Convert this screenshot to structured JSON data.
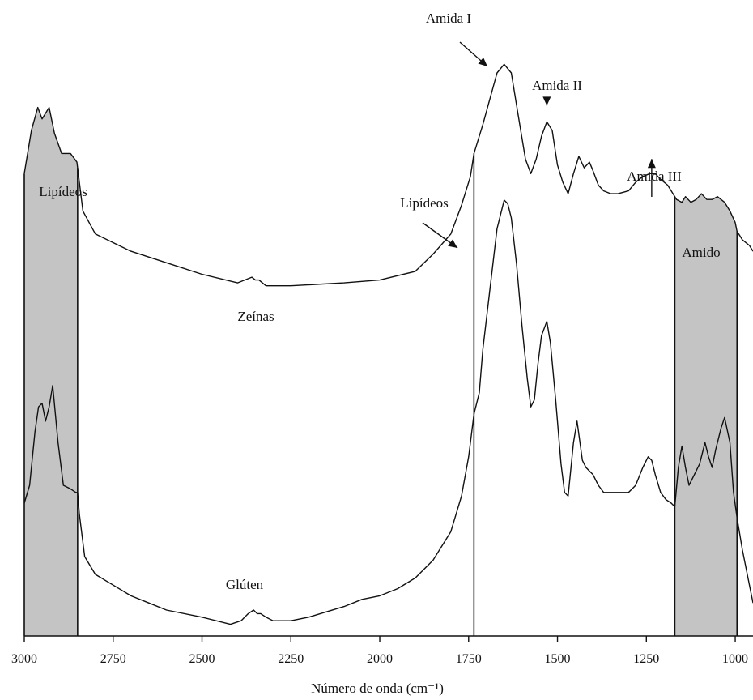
{
  "chart_data": {
    "type": "line",
    "xlabel": "Número de onda (cm⁻¹)",
    "xlim": [
      3000,
      950
    ],
    "x_reversed": true,
    "xticks": [
      3000,
      2750,
      2500,
      2250,
      2000,
      1750,
      1500,
      1250,
      1000
    ],
    "y_axis_shown": false,
    "grid": false,
    "shaded_regions": [
      {
        "label": "Lipídeos",
        "from": 3000,
        "to": 2850
      },
      {
        "label": "Amido",
        "from": 1170,
        "to": 995
      }
    ],
    "vertical_markers": [
      1735
    ],
    "annotations": [
      {
        "text": "Amida I",
        "x": 1650,
        "arrow": true
      },
      {
        "text": "Amida II",
        "x": 1530,
        "arrow": true
      },
      {
        "text": "Amida III",
        "x": 1235,
        "arrow": true
      },
      {
        "text": "Lipídeos",
        "x": 1740,
        "arrow": true
      },
      {
        "text": "Lipídeos",
        "x": 2935,
        "arrow": false
      },
      {
        "text": "Amido",
        "x": 1080,
        "arrow": false
      }
    ],
    "series": [
      {
        "name": "Zeínas",
        "x": [
          3000,
          2980,
          2962,
          2950,
          2930,
          2915,
          2895,
          2870,
          2852,
          2835,
          2800,
          2750,
          2700,
          2600,
          2500,
          2400,
          2360,
          2350,
          2340,
          2320,
          2300,
          2250,
          2100,
          2000,
          1900,
          1850,
          1800,
          1770,
          1745,
          1735,
          1710,
          1690,
          1670,
          1650,
          1630,
          1610,
          1590,
          1575,
          1560,
          1545,
          1530,
          1515,
          1500,
          1485,
          1470,
          1455,
          1440,
          1425,
          1410,
          1400,
          1385,
          1370,
          1350,
          1330,
          1300,
          1280,
          1260,
          1240,
          1225,
          1210,
          1190,
          1175,
          1165,
          1150,
          1140,
          1125,
          1110,
          1095,
          1080,
          1065,
          1050,
          1030,
          1015,
          1000,
          995,
          980,
          960,
          950
        ],
        "values": [
          0.65,
          0.8,
          0.88,
          0.84,
          0.88,
          0.79,
          0.72,
          0.72,
          0.69,
          0.52,
          0.44,
          0.41,
          0.38,
          0.34,
          0.3,
          0.27,
          0.29,
          0.28,
          0.28,
          0.26,
          0.26,
          0.26,
          0.27,
          0.28,
          0.31,
          0.37,
          0.44,
          0.54,
          0.64,
          0.72,
          0.82,
          0.91,
          1.0,
          1.03,
          1.0,
          0.85,
          0.7,
          0.65,
          0.7,
          0.78,
          0.83,
          0.8,
          0.68,
          0.62,
          0.58,
          0.65,
          0.71,
          0.67,
          0.69,
          0.66,
          0.61,
          0.59,
          0.58,
          0.58,
          0.59,
          0.62,
          0.64,
          0.65,
          0.65,
          0.63,
          0.61,
          0.58,
          0.56,
          0.55,
          0.57,
          0.55,
          0.56,
          0.58,
          0.56,
          0.56,
          0.57,
          0.55,
          0.52,
          0.48,
          0.45,
          0.42,
          0.4,
          0.38
        ]
      },
      {
        "name": "Glúten",
        "x": [
          3000,
          2985,
          2970,
          2960,
          2950,
          2940,
          2930,
          2920,
          2905,
          2890,
          2870,
          2855,
          2850,
          2845,
          2830,
          2800,
          2750,
          2700,
          2650,
          2600,
          2500,
          2420,
          2390,
          2370,
          2355,
          2345,
          2335,
          2320,
          2300,
          2250,
          2200,
          2100,
          2050,
          2000,
          1950,
          1900,
          1850,
          1800,
          1770,
          1750,
          1735,
          1720,
          1710,
          1690,
          1670,
          1650,
          1640,
          1630,
          1615,
          1600,
          1585,
          1575,
          1565,
          1555,
          1545,
          1530,
          1520,
          1505,
          1490,
          1480,
          1470,
          1455,
          1445,
          1430,
          1420,
          1410,
          1400,
          1385,
          1370,
          1350,
          1330,
          1300,
          1280,
          1260,
          1245,
          1235,
          1225,
          1210,
          1195,
          1180,
          1170,
          1160,
          1150,
          1140,
          1130,
          1120,
          1100,
          1085,
          1075,
          1065,
          1055,
          1040,
          1030,
          1015,
          1005,
          995,
          980,
          960,
          950
        ],
        "values": [
          0.35,
          0.4,
          0.55,
          0.62,
          0.63,
          0.58,
          0.62,
          0.68,
          0.52,
          0.4,
          0.39,
          0.38,
          0.38,
          0.32,
          0.2,
          0.15,
          0.12,
          0.09,
          0.07,
          0.05,
          0.03,
          0.01,
          0.02,
          0.04,
          0.05,
          0.04,
          0.04,
          0.03,
          0.02,
          0.02,
          0.03,
          0.06,
          0.08,
          0.09,
          0.11,
          0.14,
          0.19,
          0.27,
          0.37,
          0.48,
          0.6,
          0.66,
          0.78,
          0.95,
          1.12,
          1.2,
          1.19,
          1.15,
          1.02,
          0.85,
          0.7,
          0.62,
          0.64,
          0.74,
          0.82,
          0.86,
          0.8,
          0.64,
          0.46,
          0.38,
          0.37,
          0.52,
          0.58,
          0.47,
          0.45,
          0.44,
          0.43,
          0.4,
          0.38,
          0.38,
          0.38,
          0.38,
          0.4,
          0.45,
          0.48,
          0.47,
          0.43,
          0.38,
          0.36,
          0.35,
          0.34,
          0.45,
          0.51,
          0.45,
          0.4,
          0.42,
          0.46,
          0.52,
          0.48,
          0.45,
          0.5,
          0.56,
          0.59,
          0.52,
          0.38,
          0.31,
          0.22,
          0.12,
          0.07
        ]
      }
    ],
    "series_labels": [
      "Zeínas",
      "Glúten"
    ]
  }
}
